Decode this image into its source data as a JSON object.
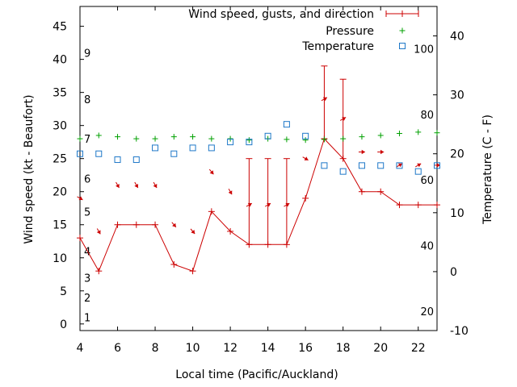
{
  "chart_data": {
    "type": "line",
    "xlabel": "Local time (Pacific/Auckland)",
    "ylabel": "Wind speed (kt - Beaufort)",
    "y2label": "Temperature (C - F)",
    "xlim": [
      4,
      23
    ],
    "ylim": [
      -1,
      48
    ],
    "y2lim": [
      -10,
      45
    ],
    "xticks": [
      4,
      6,
      8,
      10,
      12,
      14,
      16,
      18,
      20,
      22
    ],
    "yticks": [
      0,
      5,
      10,
      15,
      20,
      25,
      30,
      35,
      40,
      45
    ],
    "y2ticks": [
      -10,
      0,
      10,
      20,
      30,
      40
    ],
    "beaufort_labels": [
      {
        "label": "1",
        "y": 1
      },
      {
        "label": "2",
        "y": 4
      },
      {
        "label": "3",
        "y": 7
      },
      {
        "label": "4",
        "y": 11
      },
      {
        "label": "5",
        "y": 17
      },
      {
        "label": "6",
        "y": 22
      },
      {
        "label": "7",
        "y": 28
      },
      {
        "label": "8",
        "y": 34
      },
      {
        "label": "9",
        "y": 41
      }
    ],
    "fahrenheit_labels": [
      {
        "label": "20",
        "y2": -6.7
      },
      {
        "label": "40",
        "y2": 4.4
      },
      {
        "label": "60",
        "y2": 15.6
      },
      {
        "label": "80",
        "y2": 26.7
      },
      {
        "label": "100",
        "y2": 37.8
      }
    ],
    "legend_position": "top-right",
    "series": [
      {
        "name": "Wind speed, gusts, and direction",
        "color": "#cc0000",
        "x": [
          4,
          5,
          6,
          7,
          8,
          9,
          10,
          11,
          12,
          13,
          14,
          15,
          16,
          17,
          18,
          19,
          20,
          21,
          22,
          23
        ],
        "values": [
          13,
          8,
          15,
          15,
          15,
          9,
          8,
          17,
          14,
          12,
          12,
          12,
          19,
          28,
          25,
          20,
          20,
          18,
          18,
          18
        ],
        "gusts": [
          null,
          null,
          null,
          null,
          null,
          null,
          null,
          null,
          null,
          25,
          25,
          25,
          null,
          39,
          37,
          null,
          null,
          null,
          null,
          null
        ],
        "direction_deg": [
          300,
          330,
          330,
          330,
          330,
          320,
          320,
          320,
          330,
          240,
          240,
          240,
          300,
          240,
          240,
          270,
          270,
          240,
          240,
          270
        ]
      },
      {
        "name": "Pressure",
        "color": "#00a000",
        "x": [
          4,
          5,
          6,
          7,
          8,
          9,
          10,
          11,
          12,
          13,
          14,
          15,
          16,
          17,
          18,
          19,
          20,
          21,
          22,
          23
        ],
        "values": [
          28.0,
          28.5,
          28.3,
          28.0,
          28.0,
          28.3,
          28.3,
          28.0,
          28.0,
          27.8,
          28.0,
          27.9,
          27.8,
          27.9,
          28.0,
          28.3,
          28.5,
          28.8,
          29.0,
          28.9
        ]
      },
      {
        "name": "Temperature",
        "color": "#1e78c8",
        "axis": "right",
        "x": [
          4,
          5,
          6,
          7,
          8,
          9,
          10,
          11,
          12,
          13,
          14,
          15,
          16,
          17,
          18,
          19,
          20,
          21,
          22,
          23
        ],
        "values": [
          20.0,
          20.0,
          19.0,
          19.0,
          21.0,
          20.0,
          21.0,
          21.0,
          22.0,
          22.0,
          23.0,
          25.0,
          23.0,
          18.0,
          17.0,
          18.0,
          18.0,
          18.0,
          17.0,
          18.0
        ]
      }
    ]
  }
}
